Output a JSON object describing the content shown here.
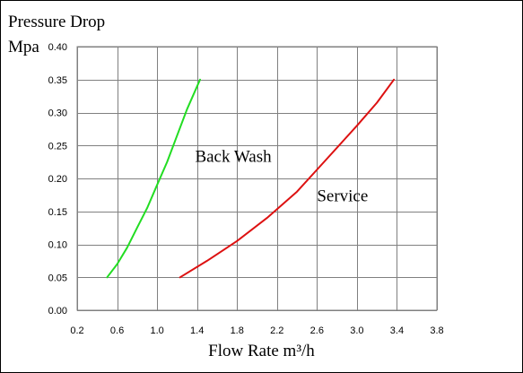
{
  "chart_data": {
    "type": "line",
    "ylabel": [
      "Pressure Drop",
      "Mpa"
    ],
    "xlabel": "Flow Rate m³/h",
    "xlim": [
      0.2,
      3.8
    ],
    "ylim": [
      0.0,
      0.4
    ],
    "x_ticks": [
      "0.2",
      "0.6",
      "1.0",
      "1.4",
      "1.8",
      "2.2",
      "2.6",
      "3.0",
      "3.4",
      "3.8"
    ],
    "y_ticks": [
      "0.00",
      "0.05",
      "0.10",
      "0.15",
      "0.20",
      "0.25",
      "0.30",
      "0.35",
      "0.40"
    ],
    "x_tick_values": [
      0.2,
      0.6,
      1.0,
      1.4,
      1.8,
      2.2,
      2.6,
      3.0,
      3.4,
      3.8
    ],
    "y_tick_values": [
      0.0,
      0.05,
      0.1,
      0.15,
      0.2,
      0.25,
      0.3,
      0.35,
      0.4
    ],
    "grid": true,
    "series": [
      {
        "name": "Back Wash",
        "color": "#22dd22",
        "x": [
          0.5,
          0.6,
          0.7,
          0.8,
          0.9,
          1.0,
          1.1,
          1.2,
          1.3,
          1.43
        ],
        "y": [
          0.05,
          0.07,
          0.095,
          0.125,
          0.155,
          0.19,
          0.225,
          0.265,
          0.305,
          0.35
        ]
      },
      {
        "name": "Service",
        "color": "#dd1111",
        "x": [
          1.23,
          1.5,
          1.8,
          2.1,
          2.4,
          2.7,
          3.0,
          3.2,
          3.37
        ],
        "y": [
          0.05,
          0.075,
          0.105,
          0.14,
          0.18,
          0.23,
          0.28,
          0.315,
          0.35
        ]
      }
    ],
    "annotations": [
      {
        "text": "Back Wash",
        "x": 1.38,
        "y": 0.225
      },
      {
        "text": "Service",
        "x": 2.6,
        "y": 0.165
      }
    ]
  }
}
